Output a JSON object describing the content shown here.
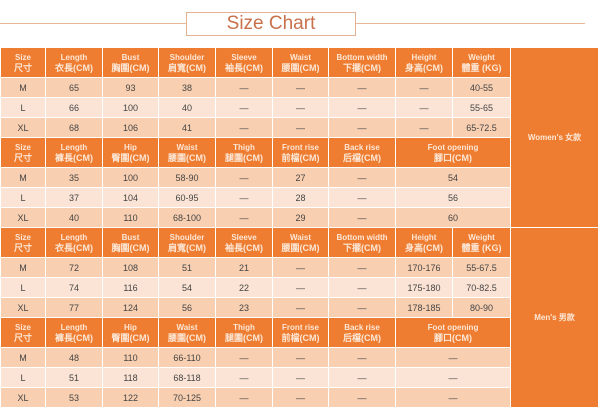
{
  "title": "Size Chart",
  "sections": [
    {
      "group": "women",
      "group_label": "Women's  女款",
      "headers": [
        [
          "Size",
          "尺寸"
        ],
        [
          "Length",
          "衣長(CM)"
        ],
        [
          "Bust",
          "胸圍(CM)"
        ],
        [
          "Shoulder",
          "肩寬(CM)"
        ],
        [
          "Sleeve",
          "袖長(CM)"
        ],
        [
          "Waist",
          "腰圍(CM)"
        ],
        [
          "Bottom width",
          "下擺(CM)"
        ],
        [
          "Height",
          "身高(CM)"
        ],
        [
          "Weight",
          "體重 (KG)"
        ]
      ],
      "rows": [
        [
          "M",
          "65",
          "93",
          "38",
          "—",
          "—",
          "—",
          "—",
          "40-55"
        ],
        [
          "L",
          "66",
          "100",
          "40",
          "—",
          "—",
          "—",
          "—",
          "55-65"
        ],
        [
          "XL",
          "68",
          "106",
          "41",
          "—",
          "—",
          "—",
          "—",
          "65-72.5"
        ]
      ]
    },
    {
      "group": "women",
      "headers": [
        [
          "Size",
          "尺寸"
        ],
        [
          "Length",
          "褲長(CM)"
        ],
        [
          "Hip",
          "臀圍(CM)"
        ],
        [
          "Waist",
          "腰圍(CM)"
        ],
        [
          "Thigh",
          "腿圍(CM)"
        ],
        [
          "Front rise",
          "前檔(CM)"
        ],
        [
          "Back rise",
          "后檔(CM)"
        ],
        [
          "Foot opening",
          "腳口(CM)"
        ]
      ],
      "rows": [
        [
          "M",
          "35",
          "100",
          "58-90",
          "—",
          "27",
          "—",
          "54"
        ],
        [
          "L",
          "37",
          "104",
          "60-95",
          "—",
          "28",
          "—",
          "56"
        ],
        [
          "XL",
          "40",
          "110",
          "68-100",
          "—",
          "29",
          "—",
          "60"
        ]
      ]
    },
    {
      "group": "men",
      "group_label": "Men's  男款",
      "headers": [
        [
          "Size",
          "尺寸"
        ],
        [
          "Length",
          "衣長(CM)"
        ],
        [
          "Bust",
          "胸圍(CM)"
        ],
        [
          "Shoulder",
          "肩寬(CM)"
        ],
        [
          "Sleeve",
          "袖長(CM)"
        ],
        [
          "Waist",
          "腰圍(CM)"
        ],
        [
          "Bottom width",
          "下擺(CM)"
        ],
        [
          "Height",
          "身高(CM)"
        ],
        [
          "Weight",
          "體重 (KG)"
        ]
      ],
      "rows": [
        [
          "M",
          "72",
          "108",
          "51",
          "21",
          "—",
          "—",
          "170-176",
          "55-67.5"
        ],
        [
          "L",
          "74",
          "116",
          "54",
          "22",
          "—",
          "—",
          "175-180",
          "70-82.5"
        ],
        [
          "XL",
          "77",
          "124",
          "56",
          "23",
          "—",
          "—",
          "178-185",
          "80-90"
        ]
      ]
    },
    {
      "group": "men",
      "headers": [
        [
          "Size",
          "尺寸"
        ],
        [
          "Length",
          "褲長(CM)"
        ],
        [
          "Hip",
          "臀圍(CM)"
        ],
        [
          "Waist",
          "腰圍(CM)"
        ],
        [
          "Thigh",
          "腿圍(CM)"
        ],
        [
          "Front rise",
          "前檔(CM)"
        ],
        [
          "Back rise",
          "后檔(CM)"
        ],
        [
          "Foot opening",
          "腳口(CM)"
        ]
      ],
      "rows": [
        [
          "M",
          "48",
          "110",
          "66-110",
          "—",
          "—",
          "—",
          "—"
        ],
        [
          "L",
          "51",
          "118",
          "68-118",
          "—",
          "—",
          "—",
          "—"
        ],
        [
          "XL",
          "53",
          "122",
          "70-125",
          "—",
          "—",
          "—",
          "—"
        ]
      ]
    }
  ],
  "colors": {
    "header": "#ee7d31",
    "row_dark": "#f8cfb1",
    "row_light": "#fbe4d5",
    "title": "#c9714a"
  }
}
